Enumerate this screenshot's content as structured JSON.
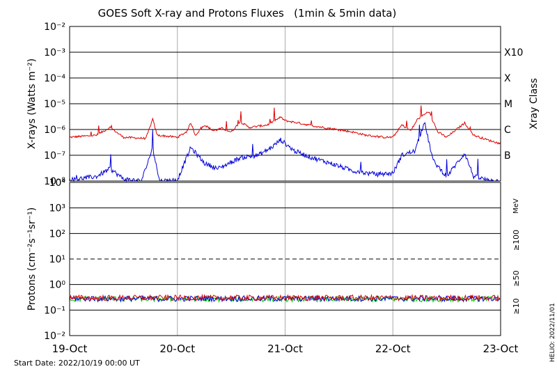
{
  "colors": {
    "xray_long": "#dd0000",
    "xray_short": "#0000dd",
    "proton_10": "#dd0000",
    "proton_50": "#0000dd",
    "proton_100": "#00cc00",
    "grid": "#000000",
    "vgrid": "#aaaaaa"
  },
  "chart_data": [
    {
      "type": "line",
      "title": "GOES Soft X-ray and Protons Fluxes   (1min & 5min data)",
      "ylabel": "X-rays (Watts m⁻²)",
      "right_axis_label": "Xray Class",
      "yscale": "log",
      "ylim": [
        1e-08,
        0.01
      ],
      "ytick_labels": [
        "10⁻⁸",
        "10⁻⁷",
        "10⁻⁶",
        "10⁻⁵",
        "10⁻⁴",
        "10⁻³",
        "10⁻²"
      ],
      "class_labels": [
        {
          "label": "B",
          "value": 1e-07
        },
        {
          "label": "C",
          "value": 1e-06
        },
        {
          "label": "M",
          "value": 1e-05
        },
        {
          "label": "X",
          "value": 0.0001
        },
        {
          "label": "X10",
          "value": 0.001
        }
      ],
      "grid": true,
      "x_days": [
        "2022-10-19",
        "2022-10-20",
        "2022-10-21",
        "2022-10-22",
        "2022-10-23"
      ],
      "series": [
        {
          "key": "long",
          "points": [
            [
              "2022-10-19T00:00",
              5e-07
            ],
            [
              "2022-10-19T06:00",
              6e-07
            ],
            [
              "2022-10-19T09:00",
              1.2e-06
            ],
            [
              "2022-10-19T12:00",
              5e-07
            ],
            [
              "2022-10-19T17:00",
              4.5e-07
            ],
            [
              "2022-10-19T18:30",
              2.5e-06
            ],
            [
              "2022-10-19T19:30",
              6e-07
            ],
            [
              "2022-10-20T00:00",
              5e-07
            ],
            [
              "2022-10-20T02:00",
              8e-07
            ],
            [
              "2022-10-20T03:00",
              1.8e-06
            ],
            [
              "2022-10-20T04:00",
              6e-07
            ],
            [
              "2022-10-20T06:00",
              1.5e-06
            ],
            [
              "2022-10-20T08:00",
              9e-07
            ],
            [
              "2022-10-20T10:00",
              1.1e-06
            ],
            [
              "2022-10-20T12:00",
              8e-07
            ],
            [
              "2022-10-20T14:00",
              2e-06
            ],
            [
              "2022-10-20T16:00",
              1.2e-06
            ],
            [
              "2022-10-20T20:00",
              1.5e-06
            ],
            [
              "2022-10-20T23:00",
              3e-06
            ],
            [
              "2022-10-21T00:00",
              2.2e-06
            ],
            [
              "2022-10-21T03:00",
              1.8e-06
            ],
            [
              "2022-10-21T06:00",
              1.4e-06
            ],
            [
              "2022-10-21T10:00",
              1.1e-06
            ],
            [
              "2022-10-21T15:00",
              8e-07
            ],
            [
              "2022-10-21T18:00",
              6e-07
            ],
            [
              "2022-10-21T22:00",
              5e-07
            ],
            [
              "2022-10-22T00:00",
              5e-07
            ],
            [
              "2022-10-22T02:00",
              1.5e-06
            ],
            [
              "2022-10-22T04:00",
              9e-07
            ],
            [
              "2022-10-22T05:30",
              2.5e-06
            ],
            [
              "2022-10-22T08:00",
              5e-06
            ],
            [
              "2022-10-22T10:00",
              8e-07
            ],
            [
              "2022-10-22T12:00",
              5e-07
            ],
            [
              "2022-10-22T16:00",
              1.8e-06
            ],
            [
              "2022-10-22T18:00",
              6e-07
            ],
            [
              "2022-10-22T21:00",
              4e-07
            ],
            [
              "2022-10-23T00:00",
              2.8e-07
            ]
          ]
        },
        {
          "key": "short",
          "points": [
            [
              "2022-10-19T00:00",
              1.1e-08
            ],
            [
              "2022-10-19T06:00",
              1.5e-08
            ],
            [
              "2022-10-19T09:00",
              3e-08
            ],
            [
              "2022-10-19T12:00",
              1.2e-08
            ],
            [
              "2022-10-19T16:00",
              1e-08
            ],
            [
              "2022-10-19T18:30",
              2e-07
            ],
            [
              "2022-10-19T20:00",
              1e-08
            ],
            [
              "2022-10-20T00:00",
              1.1e-08
            ],
            [
              "2022-10-20T03:00",
              2e-07
            ],
            [
              "2022-10-20T06:00",
              5e-08
            ],
            [
              "2022-10-20T09:00",
              3e-08
            ],
            [
              "2022-10-20T14:00",
              8e-08
            ],
            [
              "2022-10-20T18:00",
              1e-07
            ],
            [
              "2022-10-20T21:00",
              2e-07
            ],
            [
              "2022-10-20T23:00",
              4e-07
            ],
            [
              "2022-10-21T02:00",
              1.5e-07
            ],
            [
              "2022-10-21T06:00",
              8e-08
            ],
            [
              "2022-10-21T10:00",
              5e-08
            ],
            [
              "2022-10-21T15:00",
              2.5e-08
            ],
            [
              "2022-10-21T20:00",
              1.8e-08
            ],
            [
              "2022-10-22T00:00",
              2e-08
            ],
            [
              "2022-10-22T02:00",
              1e-07
            ],
            [
              "2022-10-22T05:00",
              1.5e-07
            ],
            [
              "2022-10-22T07:00",
              2e-06
            ],
            [
              "2022-10-22T09:00",
              6e-08
            ],
            [
              "2022-10-22T12:00",
              1.5e-08
            ],
            [
              "2022-10-22T16:00",
              1.2e-07
            ],
            [
              "2022-10-22T18:00",
              1.5e-08
            ],
            [
              "2022-10-22T21:00",
              1.1e-08
            ],
            [
              "2022-10-23T00:00",
              1e-08
            ]
          ]
        }
      ]
    },
    {
      "type": "line",
      "ylabel": "Protons (cm⁻²s⁻¹sr⁻¹)",
      "yscale": "log",
      "ylim": [
        0.01,
        10000
      ],
      "ytick_labels": [
        "10⁻²",
        "10⁻¹",
        "10⁰",
        "10¹",
        "10²",
        "10³",
        "10⁴"
      ],
      "threshold": 10,
      "unit_label": "MeV",
      "legend": [
        {
          "label": "≥10",
          "color_key": "proton_10"
        },
        {
          "label": "≥50",
          "color_key": "proton_50"
        },
        {
          "label": "≥100",
          "color_key": "proton_100"
        }
      ],
      "grid": true,
      "series": [
        {
          "key": "p10",
          "level": 0.3
        },
        {
          "key": "p50",
          "level": 0.28
        },
        {
          "key": "p100",
          "level": 0.27
        }
      ],
      "x_tick_labels": [
        "19-Oct",
        "20-Oct",
        "21-Oct",
        "22-Oct",
        "23-Oct"
      ]
    }
  ],
  "footer": {
    "start_date": "Start Date: 2022/10/19 00:00 UT",
    "helio": "HELIO: 2022/11/01"
  }
}
